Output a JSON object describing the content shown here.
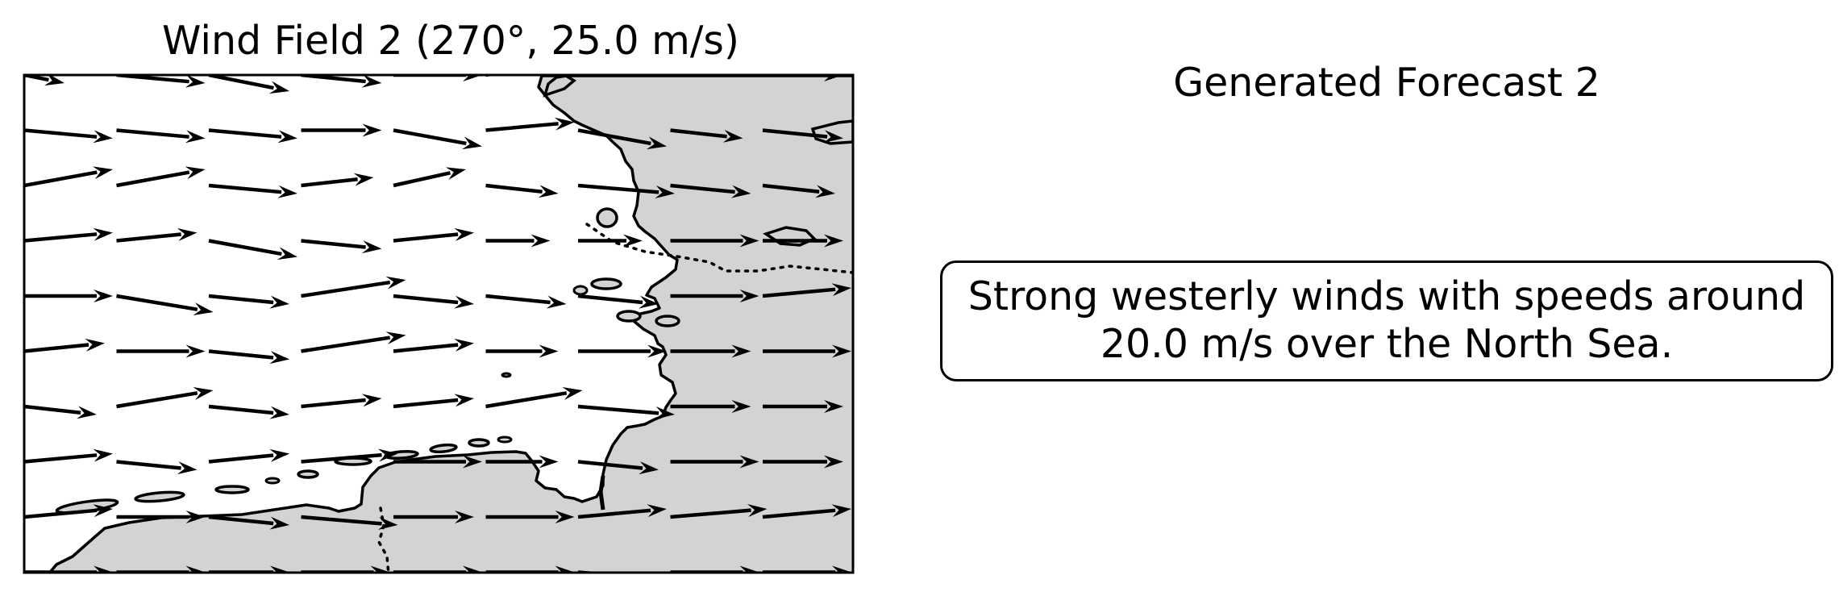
{
  "map_panel": {
    "title": "Wind Field 2 (270°, 25.0 m/s)",
    "land_color": "#d3d3d3",
    "water_color": "#ffffff",
    "line_color": "#000000",
    "arrow_color": "#000000",
    "wind_vectors": [
      [
        [
          5,
          -1
        ],
        [
          11,
          -1
        ],
        [
          10,
          -2
        ],
        [
          10,
          -1
        ],
        [
          11,
          0
        ],
        [
          7,
          1
        ],
        [
          7,
          1
        ],
        [
          6,
          1
        ],
        [
          10,
          0
        ],
        [
          12,
          -3
        ]
      ],
      [
        [
          11,
          -1
        ],
        [
          11,
          -1
        ],
        [
          11,
          -1
        ],
        [
          10,
          0
        ],
        [
          11,
          -2
        ],
        [
          11,
          1
        ],
        [
          11,
          -2
        ],
        [
          9,
          -1
        ],
        [
          10,
          -1
        ],
        [
          9,
          -1
        ]
      ],
      [
        [
          11,
          2
        ],
        [
          11,
          2
        ],
        [
          11,
          -1
        ],
        [
          9,
          1
        ],
        [
          9,
          2
        ],
        [
          9,
          -1
        ],
        [
          12,
          -1
        ],
        [
          10,
          -1
        ],
        [
          9,
          -1
        ],
        [
          11,
          -1
        ]
      ],
      [
        [
          11,
          1
        ],
        [
          10,
          1
        ],
        [
          11,
          -2
        ],
        [
          10,
          -1
        ],
        [
          10,
          1
        ],
        [
          8,
          0
        ],
        [
          8,
          0
        ],
        [
          11,
          0
        ],
        [
          10,
          0
        ],
        [
          11,
          -1
        ]
      ],
      [
        [
          11,
          0
        ],
        [
          12,
          -2
        ],
        [
          10,
          -1
        ],
        [
          13,
          2
        ],
        [
          10,
          -1
        ],
        [
          10,
          -1
        ],
        [
          10,
          -1
        ],
        [
          11,
          0
        ],
        [
          11,
          1
        ],
        [
          10,
          0
        ]
      ],
      [
        [
          10,
          1
        ],
        [
          11,
          0
        ],
        [
          10,
          -1
        ],
        [
          13,
          2
        ],
        [
          10,
          1
        ],
        [
          9,
          0
        ],
        [
          11,
          0
        ],
        [
          10,
          0
        ],
        [
          11,
          0
        ],
        [
          11,
          -1
        ]
      ],
      [
        [
          9,
          -1
        ],
        [
          12,
          2
        ],
        [
          10,
          -1
        ],
        [
          10,
          1
        ],
        [
          10,
          1
        ],
        [
          12,
          2
        ],
        [
          12,
          -1
        ],
        [
          10,
          0
        ],
        [
          10,
          0
        ],
        [
          11,
          0
        ]
      ],
      [
        [
          11,
          1
        ],
        [
          10,
          -1
        ],
        [
          10,
          1
        ],
        [
          12,
          1
        ],
        [
          11,
          0
        ],
        [
          9,
          0
        ],
        [
          10,
          -1
        ],
        [
          11,
          0
        ],
        [
          10,
          0
        ],
        [
          11,
          1
        ]
      ],
      [
        [
          11,
          1
        ],
        [
          11,
          0
        ],
        [
          10,
          -1
        ],
        [
          12,
          -1
        ],
        [
          10,
          0
        ],
        [
          11,
          0
        ],
        [
          11,
          1
        ],
        [
          12,
          1
        ],
        [
          11,
          1
        ],
        [
          11,
          -1
        ]
      ],
      [
        [
          11,
          0
        ],
        [
          11,
          0
        ],
        [
          10,
          0
        ],
        [
          11,
          0
        ],
        [
          11,
          0
        ],
        [
          11,
          0
        ],
        [
          13,
          -1
        ],
        [
          11,
          0
        ],
        [
          11,
          0
        ],
        [
          11,
          0
        ]
      ]
    ]
  },
  "forecast_panel": {
    "title": "Generated Forecast 2",
    "text": "Strong westerly winds with speeds around 20.0 m/s over the North Sea."
  }
}
